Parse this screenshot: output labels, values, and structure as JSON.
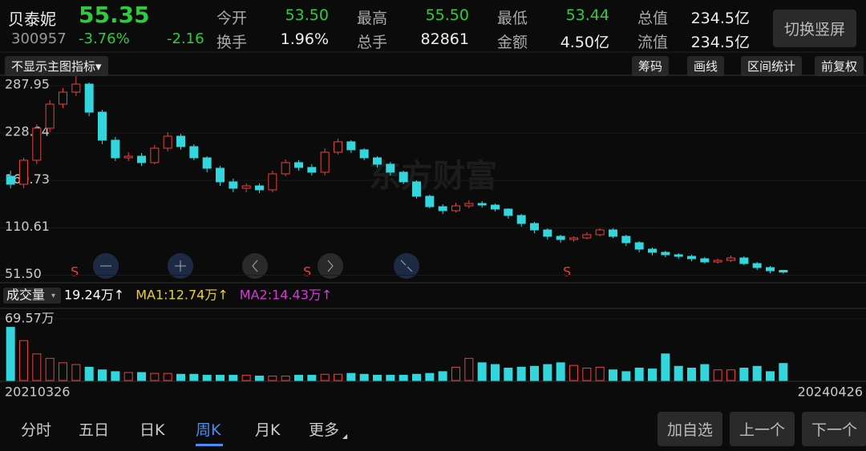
{
  "quote": {
    "name": "贝泰妮",
    "price": "55.35",
    "code": "300957",
    "change_pct": "-3.76%",
    "change": "-2.16",
    "fields": [
      [
        "今开",
        "53.50"
      ],
      [
        "最高",
        "55.50"
      ],
      [
        "最低",
        "53.44"
      ],
      [
        "总值",
        "234.5亿"
      ],
      [
        "换手",
        "1.96%"
      ],
      [
        "总手",
        "82861"
      ],
      [
        "金额",
        "4.50亿"
      ],
      [
        "流值",
        "234.5亿"
      ]
    ],
    "button": "切换竖屏"
  },
  "toolbar": {
    "indicator": "不显示主图指标",
    "tools": [
      "筹码",
      "画线",
      "区间统计",
      "前复权"
    ]
  },
  "chart_data": [
    {
      "type": "candlestick",
      "colors": {
        "up": "#e8413e",
        "down": "#33d6dd"
      },
      "ylim": [
        45,
        300
      ],
      "yticks": [
        287.95,
        228.84,
        169.73,
        110.61,
        {
          "value": 51.5,
          "label": "51.50"
        }
      ],
      "signals": [
        "S",
        "S",
        "S"
      ],
      "watermark": "东方财富",
      "open": [
        175,
        165,
        195,
        235,
        265,
        280,
        290,
        255,
        220,
        198,
        200,
        192,
        210,
        225,
        212,
        198,
        185,
        168,
        160,
        163,
        158,
        178,
        192,
        186,
        180,
        205,
        218,
        208,
        198,
        190,
        180,
        168,
        150,
        137,
        132,
        138,
        141,
        139,
        134,
        126,
        116,
        108,
        100,
        96,
        98,
        102,
        108,
        100,
        92,
        84,
        80,
        77,
        75,
        72,
        68,
        70,
        73,
        66,
        61,
        57.5
      ],
      "high": [
        182,
        198,
        240,
        270,
        285,
        300,
        292,
        258,
        224,
        205,
        204,
        214,
        230,
        228,
        215,
        200,
        188,
        172,
        166,
        166,
        182,
        196,
        195,
        190,
        210,
        222,
        220,
        210,
        200,
        193,
        182,
        170,
        152,
        140,
        142,
        145,
        144,
        141,
        135,
        128,
        118,
        110,
        102,
        100,
        105,
        110,
        110,
        102,
        94,
        86,
        82,
        79,
        77,
        74,
        72,
        76,
        75,
        68,
        63,
        55.5
      ],
      "low": [
        160,
        160,
        190,
        230,
        260,
        275,
        250,
        215,
        194,
        194,
        188,
        190,
        206,
        208,
        195,
        180,
        163,
        155,
        155,
        154,
        155,
        175,
        182,
        176,
        176,
        202,
        204,
        195,
        186,
        176,
        165,
        147,
        135,
        128,
        130,
        135,
        136,
        131,
        122,
        112,
        104,
        96,
        92,
        93,
        96,
        100,
        98,
        88,
        80,
        76,
        74,
        72,
        69,
        66,
        66,
        68,
        64,
        58,
        54,
        53.44
      ],
      "close": [
        165,
        195,
        235,
        265,
        280,
        290,
        255,
        220,
        198,
        200,
        192,
        210,
        225,
        212,
        198,
        185,
        168,
        160,
        163,
        158,
        178,
        192,
        186,
        180,
        205,
        218,
        208,
        198,
        190,
        180,
        168,
        150,
        137,
        132,
        138,
        141,
        139,
        134,
        126,
        116,
        108,
        100,
        96,
        98,
        102,
        108,
        100,
        92,
        84,
        80,
        77,
        75,
        72,
        68,
        70,
        73,
        66,
        61,
        57,
        55.35
      ]
    },
    {
      "type": "bar",
      "title": "成交量",
      "legend": [
        "19.24万↑",
        "MA1:12.74万↑",
        "MA2:14.43万↑"
      ],
      "legend_colors": [
        "#ffffff",
        "#e8d03b",
        "#d43bd6"
      ],
      "ylim": [
        0,
        69.57
      ],
      "yticks": [
        {
          "value": 69.57,
          "label": "69.57万"
        }
      ],
      "values": [
        60,
        45,
        30,
        25,
        20,
        18,
        15,
        12,
        10,
        9,
        9,
        8,
        8,
        7,
        7,
        6,
        6,
        6,
        6,
        5,
        5,
        5,
        6,
        6,
        7,
        7,
        8,
        7,
        6,
        6,
        6,
        7,
        8,
        10,
        15,
        25,
        20,
        18,
        14,
        15,
        16,
        18,
        20,
        17,
        14,
        15,
        12,
        10,
        14,
        13,
        30,
        16,
        14,
        18,
        12,
        12,
        14,
        16,
        10,
        19.24
      ],
      "x_labels": [
        "20210326",
        "20240426"
      ]
    }
  ],
  "nav": {
    "tabs": [
      "分时",
      "五日",
      "日K",
      "周K",
      "月K",
      "更多"
    ],
    "active": "周K",
    "buttons": [
      "加自选",
      "上一个",
      "下一个"
    ]
  }
}
